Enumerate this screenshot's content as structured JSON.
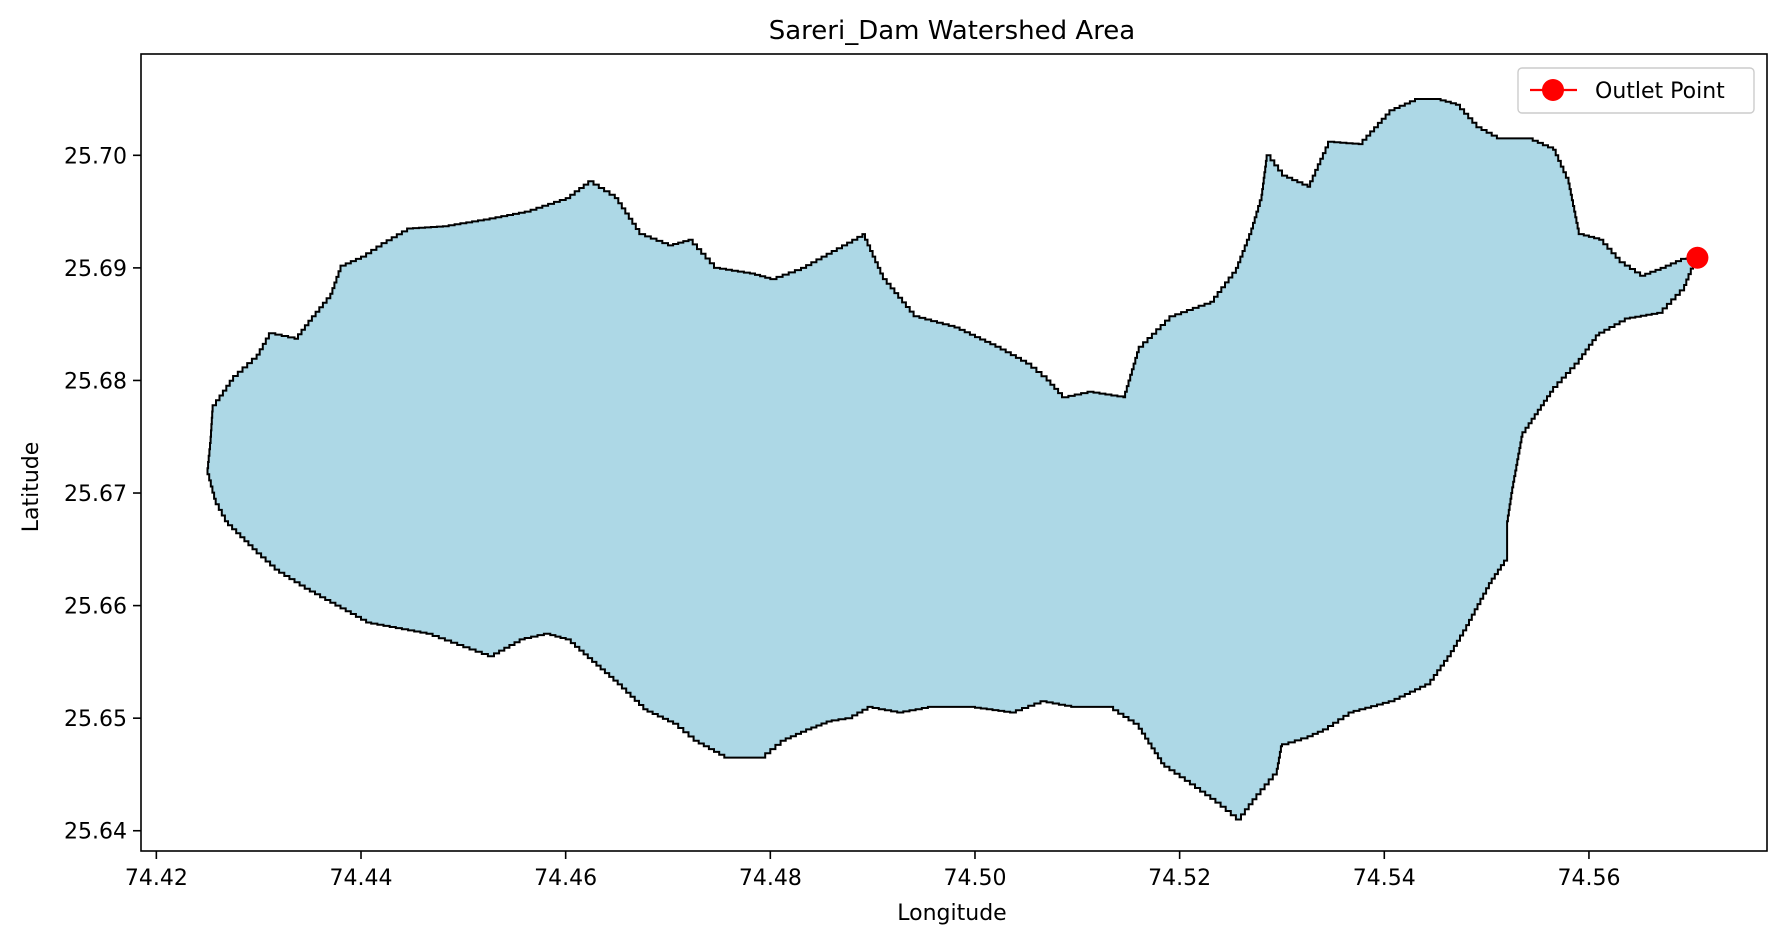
{
  "chart_data": {
    "type": "map",
    "title": "Sareri_Dam Watershed Area",
    "xlabel": "Longitude",
    "ylabel": "Latitude",
    "xlim": [
      74.4185,
      74.5774
    ],
    "ylim": [
      25.6382,
      25.709
    ],
    "xticks": [
      74.42,
      74.44,
      74.46,
      74.48,
      74.5,
      74.52,
      74.54,
      74.56
    ],
    "xtick_labels": [
      "74.42",
      "74.44",
      "74.46",
      "74.48",
      "74.50",
      "74.52",
      "74.54",
      "74.56"
    ],
    "yticks": [
      25.64,
      25.65,
      25.66,
      25.67,
      25.68,
      25.69,
      25.7
    ],
    "ytick_labels": [
      "25.64",
      "25.65",
      "25.66",
      "25.67",
      "25.68",
      "25.69",
      "25.70"
    ],
    "grid": false,
    "legend_position": "top-right",
    "watershed": {
      "fill_color": "#add8e6",
      "edge_color": "#000000",
      "boundary": [
        [
          74.4255,
          25.6778
        ],
        [
          74.4275,
          25.6804
        ],
        [
          74.4298,
          25.6823
        ],
        [
          74.431,
          25.6842
        ],
        [
          74.4335,
          25.6837
        ],
        [
          74.4352,
          25.6857
        ],
        [
          74.437,
          25.6877
        ],
        [
          74.438,
          25.6902
        ],
        [
          74.44,
          25.691
        ],
        [
          74.442,
          25.6922
        ],
        [
          74.4445,
          25.6935
        ],
        [
          74.448,
          25.6937
        ],
        [
          74.452,
          25.6943
        ],
        [
          74.456,
          25.695
        ],
        [
          74.46,
          25.6962
        ],
        [
          74.4622,
          25.6977
        ],
        [
          74.4648,
          25.6962
        ],
        [
          74.4672,
          25.693
        ],
        [
          74.47,
          25.692
        ],
        [
          74.472,
          25.6925
        ],
        [
          74.4745,
          25.69
        ],
        [
          74.478,
          25.6895
        ],
        [
          74.48,
          25.689
        ],
        [
          74.483,
          25.69
        ],
        [
          74.487,
          25.692
        ],
        [
          74.489,
          25.693
        ],
        [
          74.491,
          25.689
        ],
        [
          74.494,
          25.6857
        ],
        [
          74.498,
          25.6847
        ],
        [
          74.502,
          25.683
        ],
        [
          74.505,
          25.6815
        ],
        [
          74.507,
          25.68
        ],
        [
          74.5085,
          25.6785
        ],
        [
          74.511,
          25.679
        ],
        [
          74.5145,
          25.6785
        ],
        [
          74.516,
          25.683
        ],
        [
          74.519,
          25.6857
        ],
        [
          74.523,
          25.687
        ],
        [
          74.5255,
          25.69
        ],
        [
          74.527,
          25.6935
        ],
        [
          74.528,
          25.6965
        ],
        [
          74.5285,
          25.7
        ],
        [
          74.53,
          25.6982
        ],
        [
          74.5325,
          25.6972
        ],
        [
          74.5345,
          25.7012
        ],
        [
          74.5375,
          25.701
        ],
        [
          74.5405,
          25.704
        ],
        [
          74.543,
          25.705
        ],
        [
          74.545,
          25.705
        ],
        [
          74.547,
          25.7045
        ],
        [
          74.549,
          25.7025
        ],
        [
          74.551,
          25.7015
        ],
        [
          74.554,
          25.7015
        ],
        [
          74.5565,
          25.7005
        ],
        [
          74.558,
          25.6975
        ],
        [
          74.559,
          25.693
        ],
        [
          74.561,
          25.6925
        ],
        [
          74.563,
          25.6905
        ],
        [
          74.565,
          25.6893
        ],
        [
          74.567,
          25.69
        ],
        [
          74.569,
          25.6908
        ],
        [
          74.5706,
          25.6909
        ],
        [
          74.5693,
          25.688
        ],
        [
          74.5672,
          25.686
        ],
        [
          74.564,
          25.6855
        ],
        [
          74.561,
          25.684
        ],
        [
          74.559,
          25.6815
        ],
        [
          74.5565,
          25.679
        ],
        [
          74.555,
          25.677
        ],
        [
          74.5535,
          25.675
        ],
        [
          74.5525,
          25.67
        ],
        [
          74.552,
          25.667
        ],
        [
          74.552,
          25.664
        ],
        [
          74.5505,
          25.662
        ],
        [
          74.548,
          25.6578
        ],
        [
          74.5465,
          25.6555
        ],
        [
          74.5445,
          25.653
        ],
        [
          74.541,
          25.6515
        ],
        [
          74.537,
          25.6505
        ],
        [
          74.5345,
          25.649
        ],
        [
          74.5325,
          25.6482
        ],
        [
          74.53,
          25.6475
        ],
        [
          74.5295,
          25.645
        ],
        [
          74.5275,
          25.6428
        ],
        [
          74.526,
          25.641
        ],
        [
          74.524,
          25.6425
        ],
        [
          74.522,
          25.6438
        ],
        [
          74.5185,
          25.646
        ],
        [
          74.516,
          25.6495
        ],
        [
          74.5135,
          25.651
        ],
        [
          74.51,
          25.651
        ],
        [
          74.507,
          25.6515
        ],
        [
          74.504,
          25.6505
        ],
        [
          74.5,
          25.651
        ],
        [
          74.496,
          25.651
        ],
        [
          74.493,
          25.6505
        ],
        [
          74.49,
          25.651
        ],
        [
          74.488,
          25.65
        ],
        [
          74.486,
          25.6497
        ],
        [
          74.484,
          25.649
        ],
        [
          74.4815,
          25.648
        ],
        [
          74.4795,
          25.6465
        ],
        [
          74.476,
          25.6465
        ],
        [
          74.473,
          25.648
        ],
        [
          74.471,
          25.6495
        ],
        [
          74.468,
          25.6508
        ],
        [
          74.4655,
          25.653
        ],
        [
          74.463,
          25.655
        ],
        [
          74.4605,
          25.657
        ],
        [
          74.4585,
          25.6575
        ],
        [
          74.456,
          25.657
        ],
        [
          74.453,
          25.6555
        ],
        [
          74.45,
          25.6565
        ],
        [
          74.447,
          25.6575
        ],
        [
          74.444,
          25.658
        ],
        [
          74.441,
          25.6585
        ],
        [
          74.438,
          25.66
        ],
        [
          74.435,
          25.6615
        ],
        [
          74.432,
          25.6632
        ],
        [
          74.4298,
          25.665
        ],
        [
          74.427,
          25.6675
        ],
        [
          74.4258,
          25.6695
        ],
        [
          74.425,
          25.6722
        ],
        [
          74.4253,
          25.675
        ]
      ]
    },
    "outlet_point": {
      "label": "Outlet Point",
      "lon": 74.5706,
      "lat": 25.6909,
      "color": "#ff0000"
    }
  }
}
